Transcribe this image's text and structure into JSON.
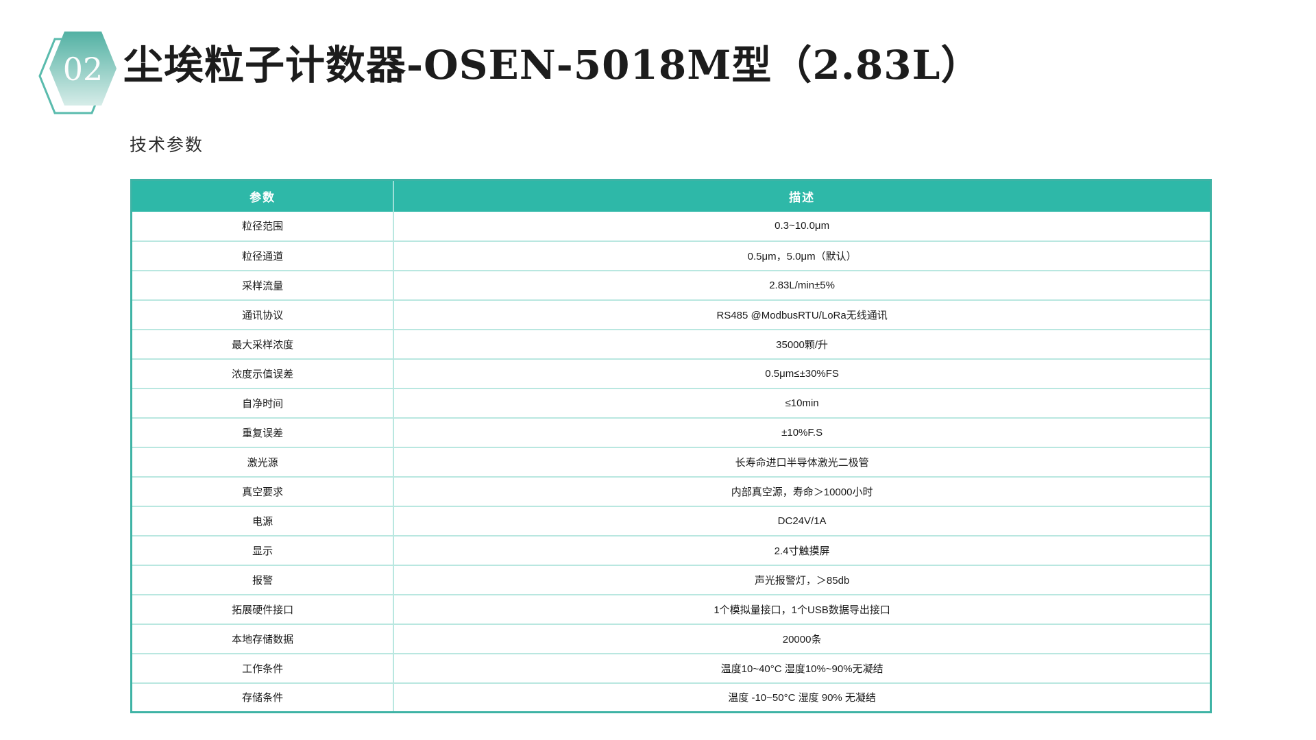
{
  "badge": {
    "number": "02"
  },
  "header": {
    "title": "尘埃粒子计数器-OSEN-5018M型（2.83L）",
    "subtitle": "技术参数"
  },
  "table": {
    "columns": [
      "参数",
      "描述"
    ],
    "rows": [
      {
        "param": "粒径范围",
        "desc": "0.3~10.0μm"
      },
      {
        "param": "粒径通道",
        "desc": "0.5μm，5.0μm（默认）"
      },
      {
        "param": "采样流量",
        "desc": "2.83L/min±5%"
      },
      {
        "param": "通讯协议",
        "desc": "RS485 @ModbusRTU/LoRa无线通讯"
      },
      {
        "param": "最大采样浓度",
        "desc": "35000颗/升"
      },
      {
        "param": "浓度示值误差",
        "desc": "0.5μm≤±30%FS"
      },
      {
        "param": "自净时间",
        "desc": "≤10min"
      },
      {
        "param": "重复误差",
        "desc": "±10%F.S"
      },
      {
        "param": "激光源",
        "desc": "长寿命进口半导体激光二极管"
      },
      {
        "param": "真空要求",
        "desc": "内部真空源，寿命＞10000小时"
      },
      {
        "param": "电源",
        "desc": "DC24V/1A"
      },
      {
        "param": "显示",
        "desc": "2.4寸触摸屏"
      },
      {
        "param": "报警",
        "desc": "声光报警灯，＞85db"
      },
      {
        "param": "拓展硬件接口",
        "desc": "1个模拟量接口，1个USB数据导出接口"
      },
      {
        "param": "本地存储数据",
        "desc": "20000条"
      },
      {
        "param": "工作条件",
        "desc": "温度10~40°C 湿度10%~90%无凝结"
      },
      {
        "param": "存储条件",
        "desc": "温度 -10~50°C 湿度 90% 无凝结"
      }
    ]
  },
  "colors": {
    "accent_teal": "#2eb8a8",
    "table_border": "#3eb3a5",
    "row_divider": "#b9e7e0",
    "hexagon_gradient_top": "#52b1a3",
    "hexagon_gradient_bottom": "#d6ece8",
    "hexagon_outline": "#5abbad",
    "badge_text": "#ffffff"
  }
}
